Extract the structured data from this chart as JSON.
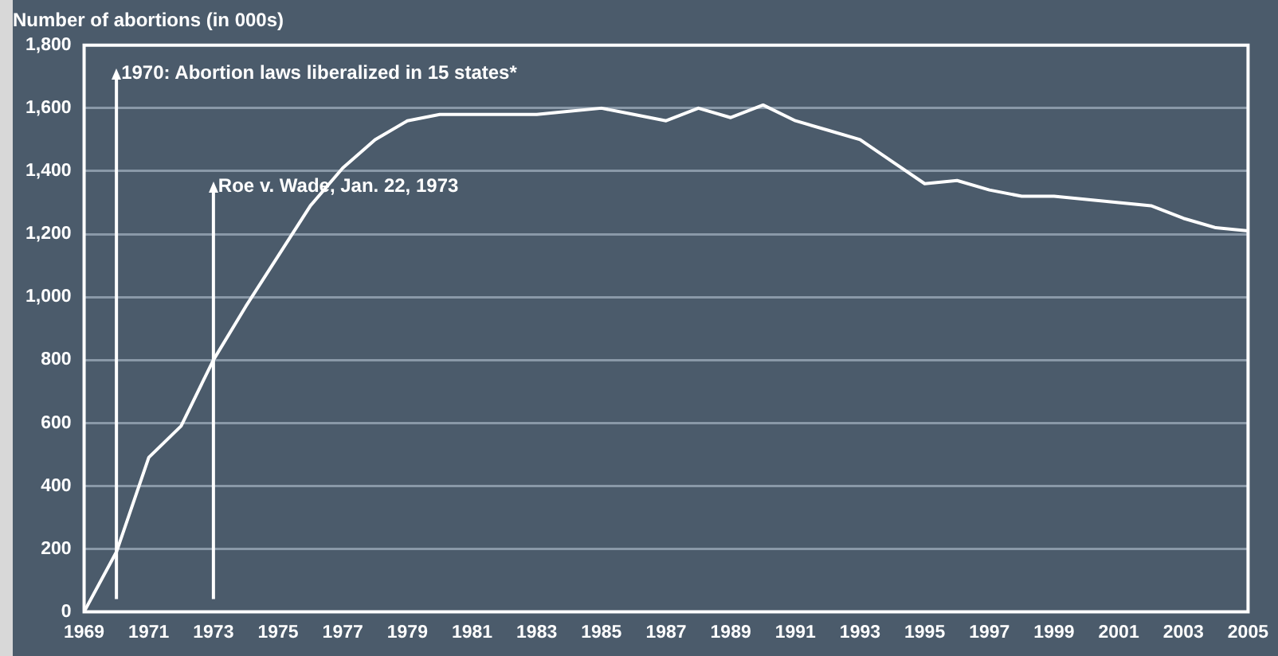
{
  "chart_data": {
    "type": "line",
    "ylabel": "Number of abortions (in 000s)",
    "x": [
      1969,
      1970,
      1971,
      1972,
      1973,
      1974,
      1975,
      1976,
      1977,
      1978,
      1979,
      1980,
      1981,
      1982,
      1983,
      1984,
      1985,
      1986,
      1987,
      1988,
      1989,
      1990,
      1991,
      1992,
      1993,
      1994,
      1995,
      1996,
      1997,
      1998,
      1999,
      2000,
      2001,
      2002,
      2003,
      2004,
      2005
    ],
    "series": [
      {
        "color": "#ffffff",
        "values": [
          0,
          190,
          490,
          590,
          800,
          970,
          1130,
          1290,
          1410,
          1500,
          1560,
          1580,
          1580,
          1580,
          1580,
          1590,
          1600,
          1580,
          1560,
          1600,
          1570,
          1610,
          1560,
          1530,
          1500,
          1430,
          1360,
          1370,
          1340,
          1320,
          1320,
          1310,
          1300,
          1290,
          1250,
          1220,
          1210
        ]
      }
    ],
    "xlim": [
      1969,
      2005
    ],
    "xticks": [
      1969,
      1971,
      1973,
      1975,
      1977,
      1979,
      1981,
      1983,
      1985,
      1987,
      1989,
      1991,
      1993,
      1995,
      1997,
      1999,
      2001,
      2003,
      2005
    ],
    "ylim": [
      0,
      1800
    ],
    "yticks": [
      {
        "value": 0,
        "label": "0"
      },
      {
        "value": 200,
        "label": "200"
      },
      {
        "value": 400,
        "label": "400"
      },
      {
        "value": 600,
        "label": "600"
      },
      {
        "value": 800,
        "label": "800"
      },
      {
        "value": 1000,
        "label": "1,000"
      },
      {
        "value": 1200,
        "label": "1,200"
      },
      {
        "value": 1400,
        "label": "1,400"
      },
      {
        "value": 1600,
        "label": "1,600"
      },
      {
        "value": 1800,
        "label": "1,800"
      }
    ],
    "ref_lines": [
      {
        "axis": "x",
        "value": 1970,
        "label": "1970: Abortion laws liberalized in 15 states*",
        "color": "#ffffff"
      },
      {
        "axis": "x",
        "value": 1973,
        "label": "Roe v. Wade, Jan. 22, 1973",
        "color": "#ffffff"
      }
    ],
    "grid": "y",
    "legend": false,
    "marker": "none",
    "line_style": "solid"
  }
}
